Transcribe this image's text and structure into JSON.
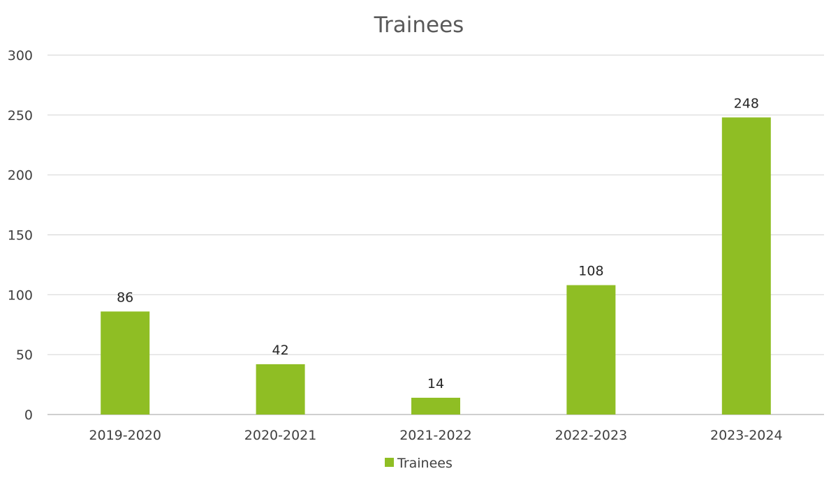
{
  "chart_data": {
    "type": "bar",
    "title": "Trainees",
    "categories": [
      "2019-2020",
      "2020-2021",
      "2021-2022",
      "2022-2023",
      "2023-2024"
    ],
    "series": [
      {
        "name": "Trainees",
        "values": [
          86,
          42,
          14,
          108,
          248
        ]
      }
    ],
    "ylim": [
      0,
      300
    ],
    "yticks": [
      0,
      50,
      100,
      150,
      200,
      250,
      300
    ],
    "grid": true,
    "legend": "bottom",
    "data_labels": true,
    "colors": {
      "bar": "#8fbe24"
    }
  }
}
